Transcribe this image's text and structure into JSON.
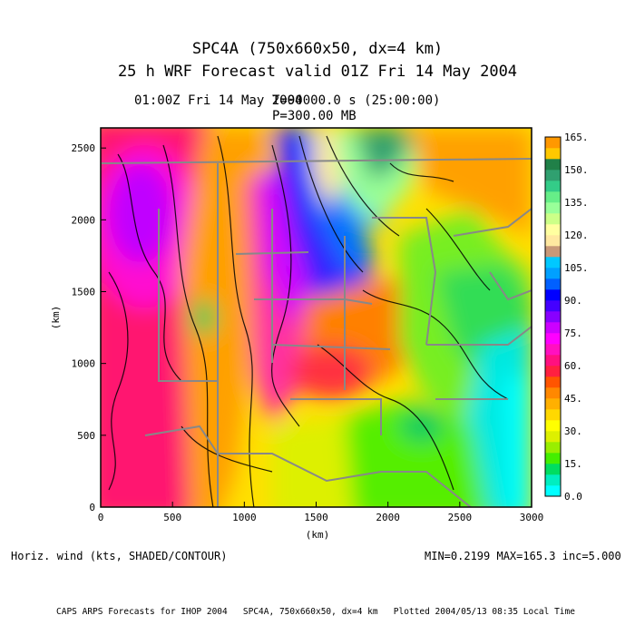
{
  "title": {
    "line1": "SPC4A (750x660x50, dx=4 km)",
    "line2": "25 h WRF Forecast valid 01Z Fri 14 May 2004",
    "time_label": "01:00Z Fri 14 May 2004",
    "seconds_label": "T=90000.0 s (25:00:00)",
    "pressure_label": "P=300.00 MB"
  },
  "field_label": "Horiz. wind (kts, SHADED/CONTOUR)",
  "stats_label": "MIN=0.2199 MAX=165.3 inc=5.000",
  "footer": "CAPS ARPS Forecasts for IHOP 2004   SPC4A, 750x660x50, dx=4 km   Plotted 2004/05/13 08:35 Local Time",
  "chart_data": {
    "type": "heatmap",
    "xlabel": "(km)",
    "ylabel": "(km)",
    "xlim": [
      0,
      3000
    ],
    "ylim": [
      0,
      2640
    ],
    "x_ticks": [
      "0",
      "500",
      "1000",
      "1500",
      "2000",
      "2500",
      "3000"
    ],
    "y_ticks": [
      "0",
      "500",
      "1000",
      "1500",
      "2000",
      "2500"
    ],
    "colorbar": {
      "range": [
        0,
        165
      ],
      "labels": [
        "165.",
        "150.",
        "135.",
        "120.",
        "105.",
        "90.",
        "75.",
        "60.",
        "45.",
        "30.",
        "15.",
        "0.0"
      ],
      "colors": [
        "#00ffff",
        "#00eec0",
        "#00dd60",
        "#44ee00",
        "#99ee00",
        "#ddf000",
        "#ffff00",
        "#ffd800",
        "#ffb000",
        "#ff8800",
        "#ff5500",
        "#ff2040",
        "#ff1080",
        "#ff10c0",
        "#ff00ff",
        "#cc00ff",
        "#8800ff",
        "#4400ff",
        "#0000ff",
        "#0060ff",
        "#00a0ff",
        "#00c8ff",
        "#c89878",
        "#ffe8a0",
        "#ffffa0",
        "#ccff88",
        "#99ff99",
        "#66ee88",
        "#33cc88",
        "#30a070",
        "#208048",
        "#ffc800",
        "#ff9800"
      ]
    }
  }
}
